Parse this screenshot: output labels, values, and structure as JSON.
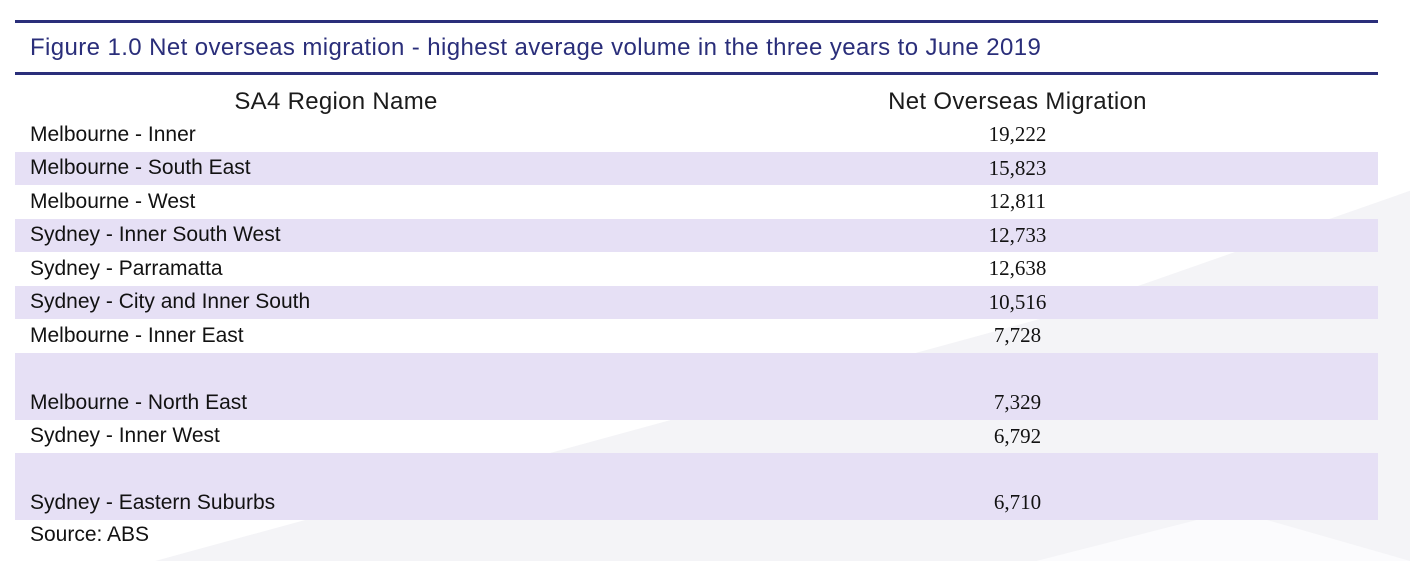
{
  "page": {
    "title": "Figure 1.0 Net overseas migration - highest average volume in the three years to June 2019",
    "source": "Source: ABS"
  },
  "table": {
    "columns": [
      "SA4 Region Name",
      "Net Overseas Migration"
    ],
    "rows": [
      {
        "region": "Melbourne - Inner",
        "value": "19,222"
      },
      {
        "region": "Melbourne - South East",
        "value": "15,823"
      },
      {
        "region": "Melbourne - West",
        "value": "12,811"
      },
      {
        "region": "Sydney - Inner South West",
        "value": "12,733"
      },
      {
        "region": "Sydney - Parramatta",
        "value": "12,638"
      },
      {
        "region": "Sydney - City and Inner South",
        "value": "10,516"
      },
      {
        "region": "Melbourne - Inner East",
        "value": "7,728"
      },
      {
        "region": "Melbourne - North East",
        "value": "7,329"
      },
      {
        "region": "Sydney - Inner West",
        "value": "6,792"
      },
      {
        "region": "Sydney - Eastern Suburbs",
        "value": "6,710"
      }
    ]
  },
  "colors": {
    "accent_navy": "#2a2e7a",
    "row_highlight": "#e6e0f5"
  },
  "chart_data": {
    "type": "table",
    "title": "Figure 1.0 Net overseas migration - highest average volume in the three years to June 2019",
    "columns": [
      "SA4 Region Name",
      "Net Overseas Migration"
    ],
    "categories": [
      "Melbourne - Inner",
      "Melbourne - South East",
      "Melbourne - West",
      "Sydney - Inner South West",
      "Sydney - Parramatta",
      "Sydney - City and Inner South",
      "Melbourne - Inner East",
      "Melbourne - North East",
      "Sydney - Inner West",
      "Sydney - Eastern Suburbs"
    ],
    "values": [
      19222,
      15823,
      12811,
      12733,
      12638,
      10516,
      7728,
      7329,
      6792,
      6710
    ],
    "source": "Source: ABS",
    "layout_hints": {
      "highlight_stripe": "alternating lavender rows",
      "value_alignment": "center"
    }
  }
}
